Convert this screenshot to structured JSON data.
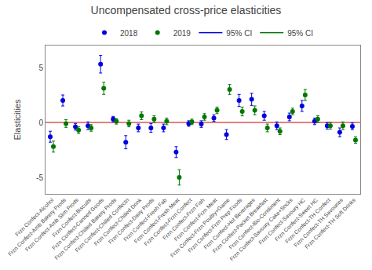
{
  "chart_data": {
    "type": "scatter",
    "title": "Uncompensated cross-price elasticities",
    "ylabel": "Elasticities",
    "categories": [
      "Frzn Confect-Alcohol",
      "Frzn Confect-Amb Bakery Prods",
      "Frzn Confect-Amb Slim Prods",
      "Frzn Confect-Biscuits",
      "Frzn Confect-Canned Goods",
      "Frzn Confect-Chilled Bakery Prods",
      "Frzn Confect-Chilled Confectn",
      "Frzn Confect-Chilled Drink",
      "Frzn Confect-Dairy Prods",
      "Frzn Confect-Fresh Fab",
      "Frzn Confect-Fresh Meat",
      "Frzn Confect-Frzn Confect",
      "Frzn Confect-Frzn Fish",
      "Frzn Confect-Frzn Meat",
      "Frzn Confect-Frzn Poultry+Game",
      "Frzn Confect-Frzn Prep Foods",
      "Frzn Confect-Hot Beverages",
      "Frzn Confect-Packet Breakfast",
      "Frzn Confect-Bio-Condiment",
      "Frzn Confect-Savoury Cake+Sncks",
      "Frzn Confect-Savoury HC",
      "Frzn Confect-Sweet HC",
      "Frzn Confect-TH Confect",
      "Frzn Confect-TH Savouries",
      "Frzn Confect-TH Soft Drinks"
    ],
    "series": [
      {
        "name": "2018",
        "color": "#0000dd",
        "marker": "circle",
        "values": [
          -1.3,
          2.0,
          -0.4,
          -0.3,
          5.3,
          0.3,
          -1.8,
          -0.5,
          -0.5,
          -0.5,
          -2.7,
          -0.1,
          -0.15,
          0.4,
          -1.1,
          2.0,
          2.1,
          0.6,
          -0.3,
          0.5,
          1.5,
          0.1,
          -0.3,
          -0.9,
          -0.35
        ],
        "error_name": "95% CI",
        "error_low": [
          0.5,
          0.5,
          0.3,
          0.35,
          0.8,
          0.25,
          0.6,
          0.35,
          0.4,
          0.35,
          0.5,
          0.25,
          0.3,
          0.3,
          0.45,
          0.55,
          0.55,
          0.4,
          0.35,
          0.35,
          0.5,
          0.3,
          0.3,
          0.4,
          0.3
        ],
        "error_high": [
          0.5,
          0.5,
          0.3,
          0.35,
          0.8,
          0.25,
          0.6,
          0.35,
          0.4,
          0.35,
          0.5,
          0.25,
          0.3,
          0.3,
          0.45,
          0.55,
          0.55,
          0.4,
          0.35,
          0.35,
          0.5,
          0.3,
          0.3,
          0.4,
          0.3
        ]
      },
      {
        "name": "2019",
        "color": "#007700",
        "marker": "circle",
        "values": [
          -2.2,
          -0.1,
          -0.7,
          -0.5,
          3.1,
          0.1,
          -0.1,
          0.6,
          0.3,
          0.1,
          -5.0,
          0.05,
          0.5,
          1.1,
          3.0,
          1.0,
          1.1,
          -0.5,
          -0.8,
          1.0,
          2.5,
          0.3,
          -0.3,
          -0.3,
          -1.6
        ],
        "error_name": "95% CI",
        "error_low": [
          0.5,
          0.35,
          0.3,
          0.3,
          0.55,
          0.25,
          0.3,
          0.35,
          0.3,
          0.3,
          0.7,
          0.25,
          0.3,
          0.3,
          0.45,
          0.4,
          0.4,
          0.35,
          0.3,
          0.3,
          0.5,
          0.3,
          0.3,
          0.35,
          0.3
        ],
        "error_high": [
          0.5,
          0.35,
          0.3,
          0.3,
          0.55,
          0.25,
          0.3,
          0.35,
          0.3,
          0.3,
          0.7,
          0.25,
          0.3,
          0.3,
          0.45,
          0.4,
          0.4,
          0.35,
          0.3,
          0.3,
          0.5,
          0.3,
          0.3,
          0.35,
          0.3
        ]
      }
    ],
    "ylim": [
      -6.5,
      7
    ],
    "yticks": [
      -5,
      0,
      5
    ],
    "grid": false,
    "hline": {
      "y": 0,
      "color": "#cc0000"
    }
  }
}
